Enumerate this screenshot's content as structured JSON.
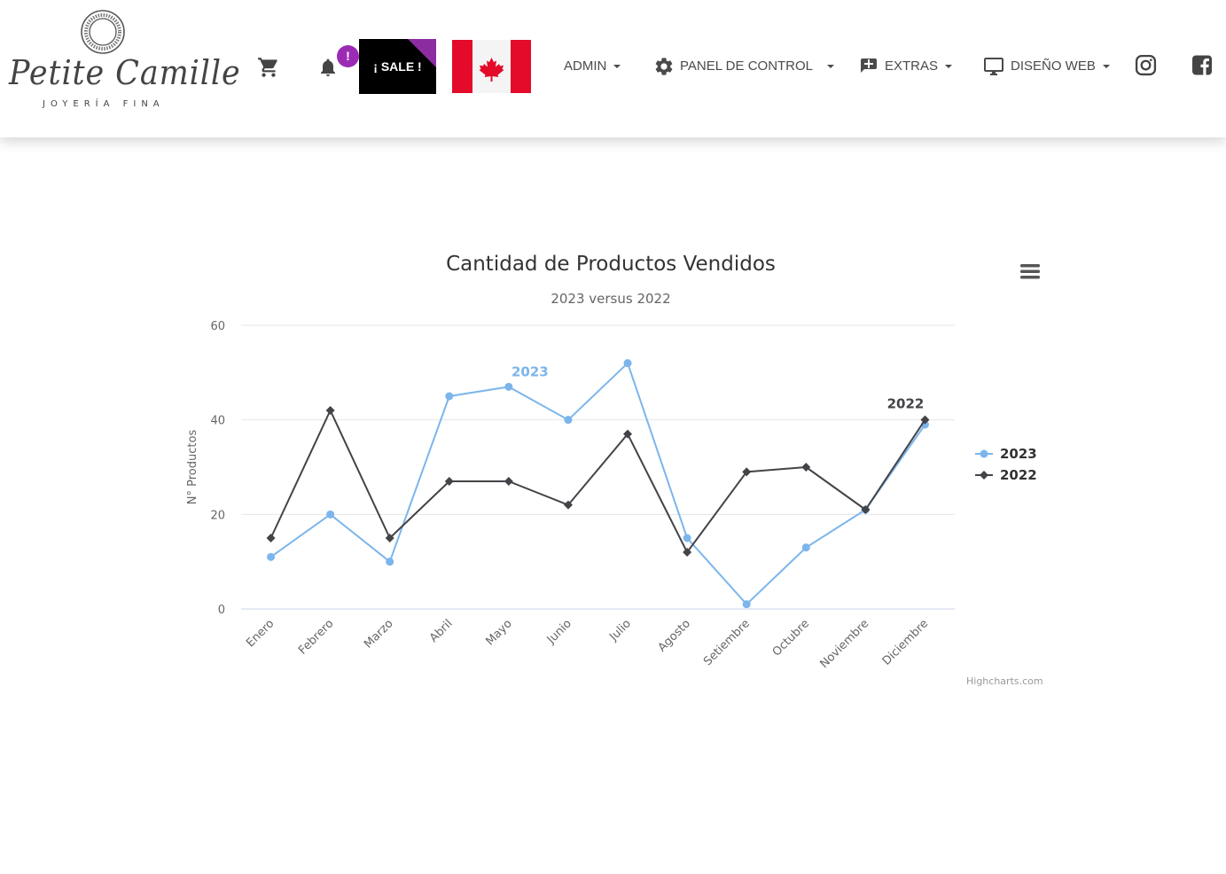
{
  "brand": {
    "name": "Petite Camille",
    "tagline": "JOYERÍA FINA"
  },
  "header": {
    "notification_badge": "!",
    "sale_label": "¡ SALE !",
    "nav": {
      "admin": "ADMIN",
      "panel": "PANEL DE CONTROL",
      "extras": "EXTRAS",
      "web": "DISEÑO WEB"
    },
    "icons": [
      "cart-icon",
      "bell-icon",
      "canada-flag-icon",
      "gear-icon",
      "add-box-icon",
      "monitor-icon",
      "instagram-icon",
      "facebook-icon"
    ]
  },
  "chart_data": {
    "type": "line",
    "title": "Cantidad de Productos Vendidos",
    "subtitle": "2023 versus 2022",
    "ylabel": "N° Productos",
    "xlabel": "",
    "ylim": [
      0,
      60
    ],
    "yticks": [
      0,
      20,
      40,
      60
    ],
    "grid": true,
    "legend_position": "right",
    "categories": [
      "Enero",
      "Febrero",
      "Marzo",
      "Abril",
      "Mayo",
      "Junio",
      "Julio",
      "Agosto",
      "Setiembre",
      "Octubre",
      "Noviembre",
      "Diciembre"
    ],
    "series": [
      {
        "name": "2023",
        "color": "#7cb5ec",
        "marker": "circle",
        "label_at_index": 4,
        "values": [
          11,
          20,
          10,
          45,
          47,
          40,
          52,
          15,
          1,
          13,
          21,
          39
        ]
      },
      {
        "name": "2022",
        "color": "#434348",
        "marker": "diamond",
        "label_at_index": 11,
        "values": [
          15,
          42,
          15,
          27,
          27,
          22,
          37,
          12,
          29,
          30,
          21,
          40
        ]
      }
    ],
    "credits": "Highcharts.com"
  }
}
